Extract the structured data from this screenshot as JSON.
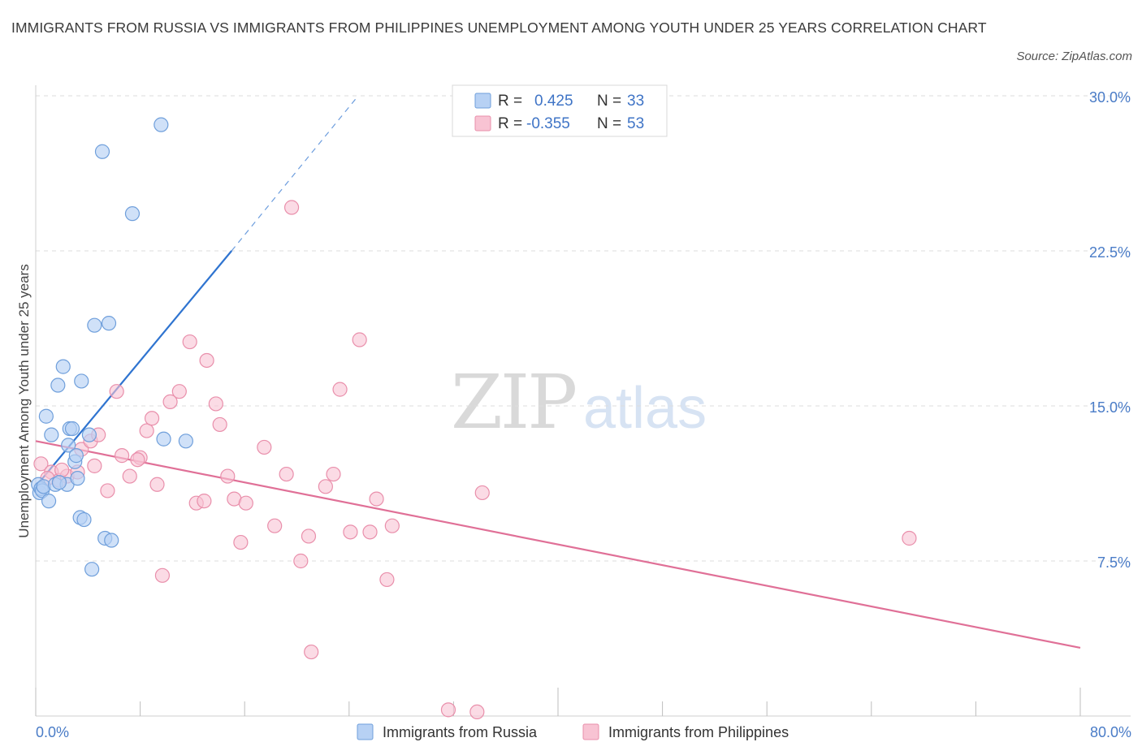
{
  "title": "IMMIGRANTS FROM RUSSIA VS IMMIGRANTS FROM PHILIPPINES UNEMPLOYMENT AMONG YOUTH UNDER 25 YEARS CORRELATION CHART",
  "source": "Source: ZipAtlas.com",
  "watermark": {
    "zip": "ZIP",
    "atlas": "atlas"
  },
  "colors": {
    "russia_fill": "#b7d1f4",
    "russia_stroke": "#6f9fdb",
    "russia_line": "#2f74d0",
    "phil_fill": "#f8c3d3",
    "phil_stroke": "#e98fab",
    "phil_line": "#e07097",
    "tick_text": "#4a7cc7",
    "grid": "#dddddd"
  },
  "stats": {
    "russia": {
      "r_label": "R =",
      "r_value": "0.425",
      "n_label": "N =",
      "n_value": "33"
    },
    "philippines": {
      "r_label": "R =",
      "r_value": "-0.355",
      "n_label": "N =",
      "n_value": "53"
    }
  },
  "chart_data": {
    "type": "scatter",
    "title": "IMMIGRANTS FROM RUSSIA VS IMMIGRANTS FROM PHILIPPINES UNEMPLOYMENT AMONG YOUTH UNDER 25 YEARS CORRELATION CHART",
    "xlabel": "",
    "ylabel": "Unemployment Among Youth under 25 years",
    "xlim": [
      0,
      80
    ],
    "ylim": [
      0,
      30
    ],
    "x_tick_labels": [
      "0.0%",
      "80.0%"
    ],
    "y_ticks": [
      7.5,
      15,
      22.5,
      30
    ],
    "y_tick_labels": [
      "7.5%",
      "15.0%",
      "22.5%",
      "30.0%"
    ],
    "legend_position": "bottom",
    "series": [
      {
        "name": "Immigrants from Russia",
        "points": [
          [
            0.2,
            11.2
          ],
          [
            0.3,
            10.8
          ],
          [
            0.4,
            11.0
          ],
          [
            0.5,
            10.9
          ],
          [
            0.6,
            11.1
          ],
          [
            0.8,
            14.5
          ],
          [
            1.0,
            10.4
          ],
          [
            1.2,
            13.6
          ],
          [
            1.5,
            11.2
          ],
          [
            1.7,
            16.0
          ],
          [
            2.1,
            16.9
          ],
          [
            2.4,
            11.2
          ],
          [
            2.5,
            13.1
          ],
          [
            2.6,
            13.9
          ],
          [
            2.8,
            13.9
          ],
          [
            3.0,
            12.3
          ],
          [
            3.1,
            12.6
          ],
          [
            3.2,
            11.5
          ],
          [
            3.4,
            9.6
          ],
          [
            3.5,
            16.2
          ],
          [
            3.7,
            9.5
          ],
          [
            4.1,
            13.6
          ],
          [
            4.3,
            7.1
          ],
          [
            4.5,
            18.9
          ],
          [
            5.1,
            27.3
          ],
          [
            5.3,
            8.6
          ],
          [
            5.6,
            19.0
          ],
          [
            5.8,
            8.5
          ],
          [
            7.4,
            24.3
          ],
          [
            9.6,
            28.6
          ],
          [
            9.8,
            13.4
          ],
          [
            11.5,
            13.3
          ],
          [
            1.8,
            11.3
          ]
        ],
        "trend": {
          "x0": 0,
          "y0": 11.1,
          "x1": 15,
          "y1": 22.5,
          "dashed_to_x": 24.7,
          "dashed_to_y": 30
        }
      },
      {
        "name": "Immigrants from Philippines",
        "points": [
          [
            0.4,
            12.2
          ],
          [
            1.2,
            11.8
          ],
          [
            1.8,
            11.4
          ],
          [
            2.4,
            11.6
          ],
          [
            3.2,
            11.8
          ],
          [
            3.5,
            12.9
          ],
          [
            4.2,
            13.3
          ],
          [
            4.5,
            12.1
          ],
          [
            4.8,
            13.6
          ],
          [
            5.5,
            10.9
          ],
          [
            6.2,
            15.7
          ],
          [
            6.6,
            12.6
          ],
          [
            7.2,
            11.6
          ],
          [
            8.0,
            12.5
          ],
          [
            8.5,
            13.8
          ],
          [
            8.9,
            14.4
          ],
          [
            9.3,
            11.2
          ],
          [
            9.7,
            6.8
          ],
          [
            10.3,
            15.2
          ],
          [
            11.0,
            15.7
          ],
          [
            11.8,
            18.1
          ],
          [
            12.3,
            10.3
          ],
          [
            12.9,
            10.4
          ],
          [
            13.1,
            17.2
          ],
          [
            13.8,
            15.1
          ],
          [
            14.1,
            14.1
          ],
          [
            14.7,
            11.6
          ],
          [
            15.2,
            10.5
          ],
          [
            15.7,
            8.4
          ],
          [
            16.1,
            10.3
          ],
          [
            17.5,
            13.0
          ],
          [
            18.3,
            9.2
          ],
          [
            19.2,
            11.7
          ],
          [
            19.6,
            24.6
          ],
          [
            20.3,
            7.5
          ],
          [
            20.9,
            8.7
          ],
          [
            21.1,
            3.1
          ],
          [
            22.2,
            11.1
          ],
          [
            22.8,
            11.7
          ],
          [
            23.3,
            15.8
          ],
          [
            24.1,
            8.9
          ],
          [
            24.8,
            18.2
          ],
          [
            25.6,
            8.9
          ],
          [
            26.1,
            10.5
          ],
          [
            26.9,
            6.6
          ],
          [
            27.3,
            9.2
          ],
          [
            31.6,
            0.3
          ],
          [
            33.8,
            0.2
          ],
          [
            34.2,
            10.8
          ],
          [
            66.9,
            8.6
          ],
          [
            7.8,
            12.4
          ],
          [
            2.0,
            11.9
          ],
          [
            0.9,
            11.5
          ]
        ],
        "trend": {
          "x0": 0,
          "y0": 13.3,
          "x1": 80,
          "y1": 3.3
        }
      }
    ]
  }
}
